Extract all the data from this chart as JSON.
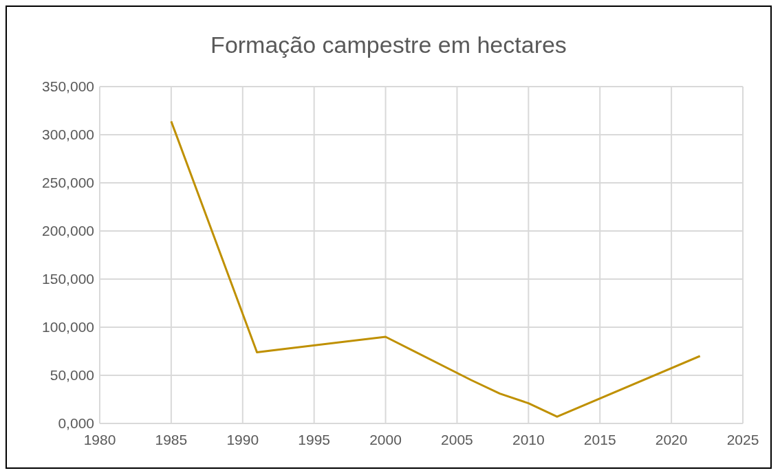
{
  "chart_data": {
    "type": "line",
    "title": "Formação campestre em hectares",
    "x": [
      1985,
      1991,
      2000,
      2006,
      2008,
      2010,
      2012,
      2022
    ],
    "series": [
      {
        "color": "#bf9000",
        "values": [
          314000,
          74000,
          90000,
          45000,
          31000,
          21000,
          7000,
          70000
        ]
      }
    ],
    "xlim": [
      1980,
      2025
    ],
    "xticks": [
      1980,
      1985,
      1990,
      1995,
      2000,
      2005,
      2010,
      2015,
      2020,
      2025
    ],
    "ylim": [
      0,
      350000
    ],
    "yticks": [
      {
        "value": 0,
        "label": "0,000"
      },
      {
        "value": 50000,
        "label": "50,000"
      },
      {
        "value": 100000,
        "label": "100,000"
      },
      {
        "value": 150000,
        "label": "150,000"
      },
      {
        "value": 200000,
        "label": "200,000"
      },
      {
        "value": 250000,
        "label": "250,000"
      },
      {
        "value": 300000,
        "label": "300,000"
      },
      {
        "value": 350000,
        "label": "350,000"
      }
    ],
    "grid": true,
    "marker": "none",
    "line_style": "solid"
  }
}
